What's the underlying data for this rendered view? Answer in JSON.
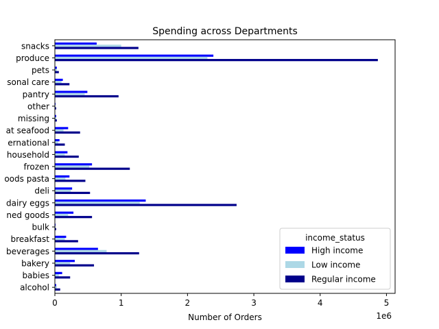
{
  "chart_data": {
    "type": "bar",
    "orientation": "horizontal",
    "title": "Spending across Departments",
    "xlabel": "Number of Orders",
    "ylabel": "",
    "x_offset_label": "1e6",
    "xlim": [
      0,
      5.13
    ],
    "x_ticks": [
      0,
      1,
      2,
      3,
      4,
      5
    ],
    "x_unit_multiplier": 1000000,
    "grid": false,
    "legend": {
      "title": "income_status",
      "position": "lower right"
    },
    "categories": [
      "alcohol",
      "babies",
      "bakery",
      "beverages",
      "breakfast",
      "bulk",
      "canned goods",
      "dairy eggs",
      "deli",
      "dry goods pasta",
      "frozen",
      "household",
      "international",
      "meat seafood",
      "missing",
      "other",
      "pantry",
      "personal care",
      "pets",
      "produce",
      "snacks"
    ],
    "category_labels": [
      "alcohol",
      "babies",
      "bakery",
      "beverages",
      "breakfast",
      "bulk",
      "ned goods",
      "dairy eggs",
      "deli",
      "oods pasta",
      "frozen",
      "household",
      "ernational",
      "at seafood",
      "missing",
      "other",
      "pantry",
      "sonal care",
      "pets",
      "produce",
      "snacks"
    ],
    "series": [
      {
        "name": "High income",
        "color": "#0000ff",
        "values": [
          0.02,
          0.11,
          0.3,
          0.65,
          0.17,
          0.01,
          0.28,
          1.37,
          0.26,
          0.22,
          0.56,
          0.19,
          0.07,
          0.2,
          0.02,
          0.01,
          0.49,
          0.12,
          0.03,
          2.39,
          0.63
        ]
      },
      {
        "name": "Low income",
        "color": "#add8e6",
        "values": [
          0.03,
          0.06,
          0.23,
          0.78,
          0.15,
          0.01,
          0.2,
          1.28,
          0.24,
          0.16,
          0.52,
          0.15,
          0.05,
          0.13,
          0.02,
          0.01,
          0.45,
          0.1,
          0.03,
          2.3,
          1.0
        ]
      },
      {
        "name": "Regular income",
        "color": "#00008b",
        "values": [
          0.08,
          0.23,
          0.59,
          1.27,
          0.35,
          0.02,
          0.56,
          2.74,
          0.53,
          0.46,
          1.13,
          0.36,
          0.15,
          0.38,
          0.03,
          0.02,
          0.96,
          0.22,
          0.06,
          4.87,
          1.26
        ]
      }
    ]
  }
}
